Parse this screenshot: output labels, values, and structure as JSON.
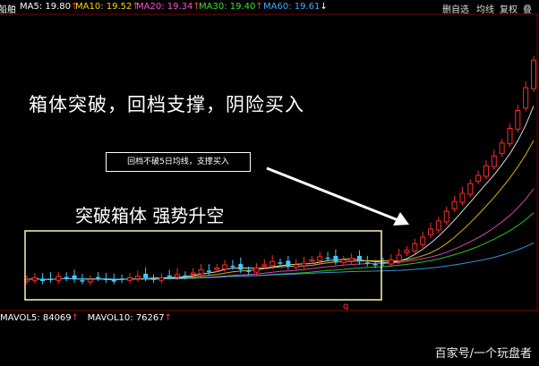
{
  "header": {
    "stock_fragment": "船舶",
    "ma5": "MA5: 19.80",
    "ma10": "MA10: 19.52",
    "ma20": "MA20: 19.34",
    "ma30": "MA30: 19.40",
    "ma60": "MA60: 19.61",
    "up_arrow": "↑",
    "down_arrow": "↓",
    "btn_delete_watch": "删自选",
    "btn_ma": "均线",
    "btn_restore": "复权",
    "btn_stack": "叠"
  },
  "colors": {
    "ma5": "#ffffff",
    "ma10": "#ffd400",
    "ma20": "#ff4fd8",
    "ma30": "#34e334",
    "ma60": "#3fa9ff",
    "rise": "#ff2a2a",
    "fall": "#46c8ff",
    "box": "#f2e6a8"
  },
  "annotations": {
    "main_title": "箱体突破，回档支撑，阴险买入",
    "callout": "回档不破5日均线，支撑买入",
    "box_label": "突破箱体  强势升空",
    "low_marker": "q"
  },
  "volume": {
    "mavol5": "MAVOL5: 84069",
    "mavol10": "MAVOL10: 76267"
  },
  "watermark": "百家号/一个玩盘者",
  "chart_data": {
    "type": "candlestick",
    "title": "箱体突破，回档支撑，阴险买入",
    "series": [
      {
        "name": "MA5",
        "value": 19.8
      },
      {
        "name": "MA10",
        "value": 19.52
      },
      {
        "name": "MA20",
        "value": 19.34
      },
      {
        "name": "MA30",
        "value": 19.4
      },
      {
        "name": "MA60",
        "value": 19.61
      }
    ],
    "phases": [
      {
        "name": "consolidation box",
        "label": "突破箱体  强势升空"
      },
      {
        "name": "pullback support",
        "label": "回档不破5日均线，支撑买入"
      },
      {
        "name": "breakout rally"
      }
    ],
    "price_path": [
      20.0,
      20.1,
      19.9,
      20.0,
      20.2,
      20.1,
      20.0,
      19.9,
      20.0,
      20.1,
      20.0,
      19.9,
      20.0,
      20.1,
      20.2,
      20.1,
      20.0,
      20.1,
      20.2,
      20.3,
      20.2,
      20.4,
      20.6,
      20.5,
      20.7,
      20.9,
      20.8,
      20.6,
      20.5,
      20.7,
      20.9,
      21.1,
      21.0,
      20.8,
      20.9,
      21.0,
      21.2,
      21.4,
      21.3,
      21.1,
      21.2,
      21.3,
      21.1,
      21.0,
      20.9,
      21.0,
      21.2,
      21.5,
      21.8,
      22.2,
      22.6,
      23.1,
      23.6,
      24.2,
      24.8,
      25.3,
      25.9,
      26.4,
      27.0,
      27.6,
      28.4,
      29.3,
      30.4,
      31.8,
      33.5
    ],
    "volume": {
      "MAVOL5": 84069,
      "MAVOL10": 76267
    }
  }
}
